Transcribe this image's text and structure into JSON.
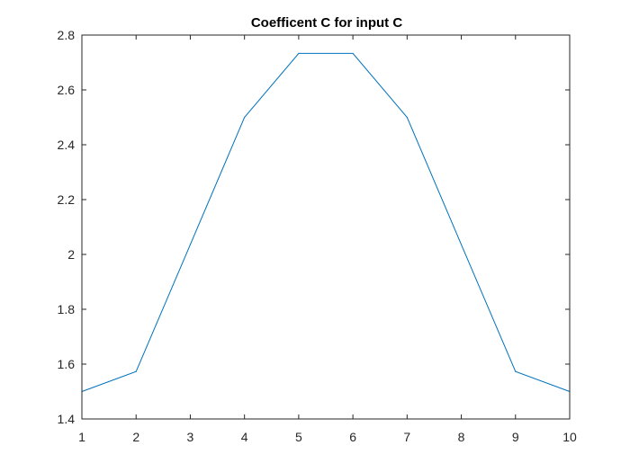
{
  "chart_data": {
    "type": "line",
    "title": "Coefficent C for input C",
    "xlabel": "",
    "ylabel": "",
    "xlim": [
      1,
      10
    ],
    "ylim": [
      1.4,
      2.8
    ],
    "xticks": [
      1,
      2,
      3,
      4,
      5,
      6,
      7,
      8,
      9,
      10
    ],
    "xtick_labels": [
      "1",
      "2",
      "3",
      "4",
      "5",
      "6",
      "7",
      "8",
      "9",
      "10"
    ],
    "yticks": [
      1.4,
      1.6,
      1.8,
      2.0,
      2.2,
      2.4,
      2.6,
      2.8
    ],
    "ytick_labels": [
      "1.4",
      "1.6",
      "1.8",
      "2",
      "2.2",
      "2.4",
      "2.6",
      "2.8"
    ],
    "grid": false,
    "box": true,
    "series": [
      {
        "color": "#0072BD",
        "x": [
          1,
          2,
          3,
          4,
          5,
          6,
          7,
          8,
          9,
          10
        ],
        "y": [
          1.5,
          1.573,
          2.036,
          2.5,
          2.733,
          2.733,
          2.5,
          2.036,
          1.573,
          1.5
        ]
      }
    ]
  }
}
